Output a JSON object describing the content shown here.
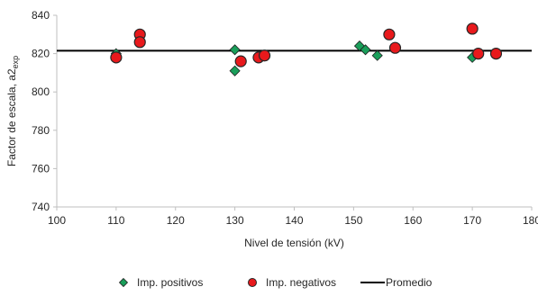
{
  "chart_data": {
    "type": "scatter",
    "title": "",
    "xlabel": "Nivel de tensión (kV)",
    "ylabel": "Factor de escala, a2",
    "ylabel_subscript": "exp",
    "xlim": [
      100,
      180
    ],
    "ylim": [
      740,
      840
    ],
    "xticks": [
      100,
      110,
      120,
      130,
      140,
      150,
      160,
      170,
      180
    ],
    "yticks": [
      740,
      760,
      780,
      800,
      820,
      840
    ],
    "grid": false,
    "legend_position": "bottom",
    "series": [
      {
        "name": "Imp. positivos",
        "marker": "diamond",
        "color": "#1a9e5a",
        "points": [
          [
            110,
            820
          ],
          [
            130,
            822
          ],
          [
            130,
            811
          ],
          [
            151,
            824
          ],
          [
            152,
            822
          ],
          [
            154,
            819
          ],
          [
            157,
            823
          ],
          [
            170,
            818
          ]
        ]
      },
      {
        "name": "Imp. negativos",
        "marker": "circle",
        "color": "#e8191c",
        "points": [
          [
            110,
            818
          ],
          [
            114,
            830
          ],
          [
            114,
            826
          ],
          [
            131,
            816
          ],
          [
            134,
            818
          ],
          [
            135,
            819
          ],
          [
            156,
            830
          ],
          [
            157,
            823
          ],
          [
            170,
            833
          ],
          [
            171,
            820
          ],
          [
            174,
            820
          ]
        ]
      },
      {
        "name": "Promedio",
        "marker": "line",
        "color": "#000000",
        "value": 821.5
      }
    ]
  }
}
